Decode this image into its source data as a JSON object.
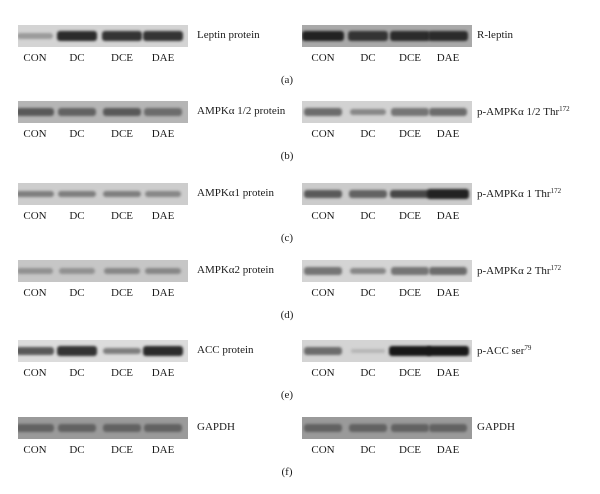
{
  "lane_labels": [
    "CON",
    "DC",
    "DCE",
    "DAE"
  ],
  "panels": [
    {
      "caption": "(a)",
      "left": {
        "label": "Leptin protein",
        "sup": "",
        "bg": "#d4d4d4",
        "intensity": [
          0.25,
          0.85,
          0.8,
          0.8
        ]
      },
      "right": {
        "label": "R-leptin",
        "sup": "",
        "bg": "#a9a9a9",
        "intensity": [
          0.9,
          0.8,
          0.85,
          0.85
        ]
      }
    },
    {
      "caption": "(b)",
      "left": {
        "label": "AMPKα 1/2 protein",
        "sup": "",
        "bg": "#b5b5b5",
        "intensity": [
          0.6,
          0.55,
          0.6,
          0.5
        ]
      },
      "right": {
        "label": "p-AMPKα 1/2 Thr",
        "sup": "172",
        "bg": "#d2d2d2",
        "intensity": [
          0.5,
          0.35,
          0.45,
          0.5
        ]
      }
    },
    {
      "caption": "(c)",
      "left": {
        "label": "AMPKα1 protein",
        "sup": "",
        "bg": "#cdcdcd",
        "intensity": [
          0.4,
          0.4,
          0.4,
          0.35
        ]
      },
      "right": {
        "label": "p-AMPKα 1 Thr",
        "sup": "172",
        "bg": "#cbcbcb",
        "intensity": [
          0.6,
          0.55,
          0.7,
          0.9
        ]
      }
    },
    {
      "caption": "(d)",
      "left": {
        "label": "AMPKα2 protein",
        "sup": "",
        "bg": "#c6c6c6",
        "intensity": [
          0.3,
          0.3,
          0.35,
          0.35
        ]
      },
      "right": {
        "label": "p-AMPKα 2 Thr",
        "sup": "172",
        "bg": "#d4d4d4",
        "intensity": [
          0.45,
          0.35,
          0.45,
          0.5
        ]
      }
    },
    {
      "caption": "(e)",
      "left": {
        "label": "ACC protein",
        "sup": "",
        "bg": "#dcdcdc",
        "intensity": [
          0.6,
          0.8,
          0.4,
          0.85
        ]
      },
      "right": {
        "label": "p-ACC ser",
        "sup": "79",
        "bg": "#d4d4d4",
        "intensity": [
          0.5,
          0.1,
          0.95,
          0.95
        ]
      }
    },
    {
      "caption": "(f)",
      "left": {
        "label": "GAPDH",
        "sup": "",
        "bg": "#9a9a9a",
        "intensity": [
          0.55,
          0.55,
          0.55,
          0.55
        ]
      },
      "right": {
        "label": "GAPDH",
        "sup": "",
        "bg": "#9a9a9a",
        "intensity": [
          0.55,
          0.55,
          0.55,
          0.55
        ]
      }
    }
  ]
}
